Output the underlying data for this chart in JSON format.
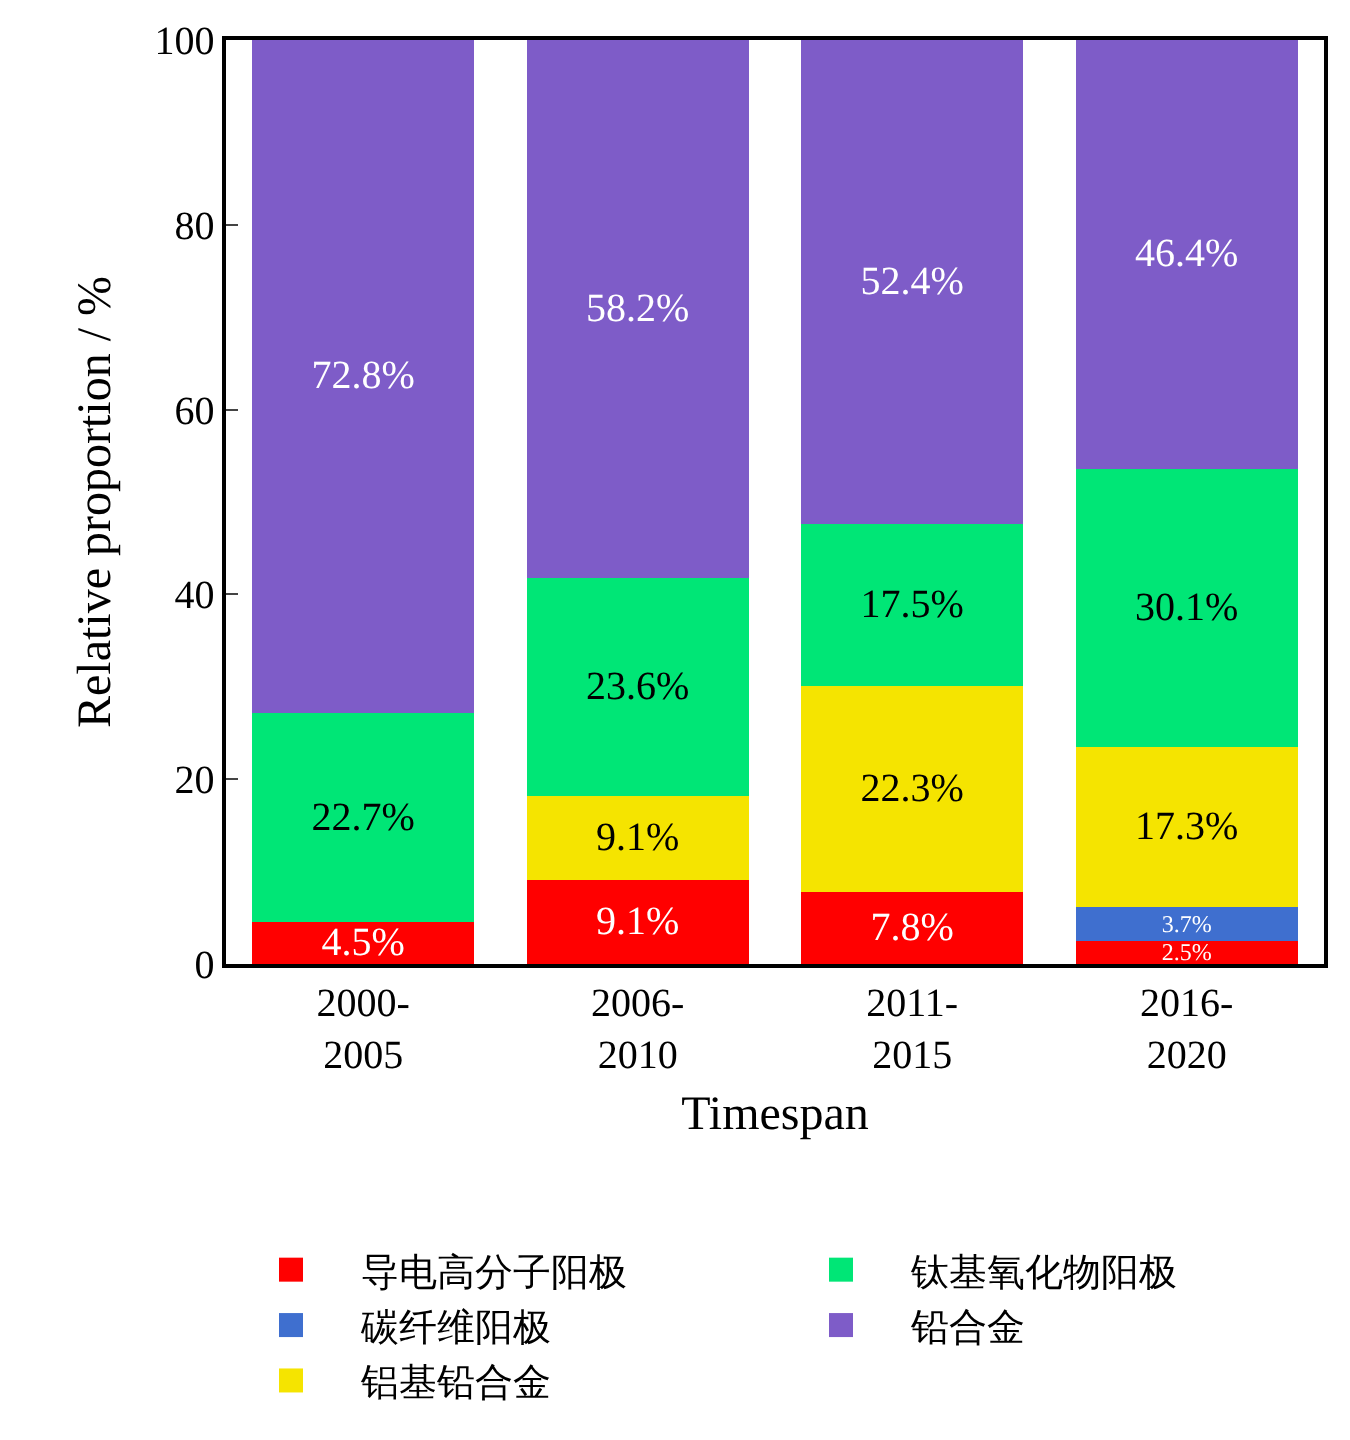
{
  "chart_data": {
    "type": "bar",
    "stacked": true,
    "xlabel": "Timespan",
    "ylabel": "Relative proportion / %",
    "categories": [
      "2000-\n2005",
      "2006-\n2010",
      "2011-\n2015",
      "2016-\n2020"
    ],
    "series": [
      {
        "name": "导电高分子阳极",
        "color": "#ff0000",
        "values": [
          4.5,
          9.1,
          7.8,
          2.5
        ],
        "value_labels": [
          "4.5%",
          "9.1%",
          "7.8%",
          "2.5%"
        ]
      },
      {
        "name": "碳纤维阳极",
        "color": "#3f6fcf",
        "values": [
          null,
          null,
          null,
          3.7
        ],
        "value_labels": [
          null,
          null,
          null,
          "3.7%"
        ]
      },
      {
        "name": "铝基铅合金",
        "color": "#f5e400",
        "values": [
          null,
          9.1,
          22.3,
          17.3
        ],
        "value_labels": [
          null,
          "9.1%",
          "22.3%",
          "17.3%"
        ]
      },
      {
        "name": "钛基氧化物阳极",
        "color": "#00e676",
        "values": [
          22.7,
          23.6,
          17.5,
          30.1
        ],
        "value_labels": [
          "22.7%",
          "23.6%",
          "17.5%",
          "30.1%"
        ]
      },
      {
        "name": "铅合金",
        "color": "#7e5cc8",
        "values": [
          72.8,
          58.2,
          52.4,
          46.4
        ],
        "value_labels": [
          "72.8%",
          "58.2%",
          "52.4%",
          "46.4%"
        ]
      }
    ],
    "ylim": [
      0,
      100
    ],
    "yticks": [
      0,
      20,
      40,
      60,
      80,
      100
    ],
    "legend": "bottom"
  }
}
